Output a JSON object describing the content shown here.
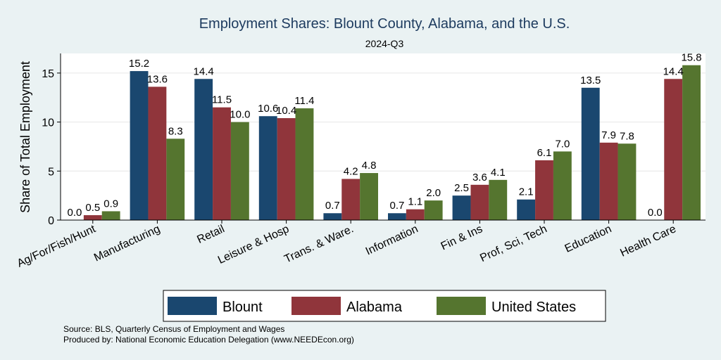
{
  "chart_data": {
    "type": "bar",
    "title": "Employment Shares: Blount County, Alabama, and the U.S.",
    "subtitle": "2024-Q3",
    "ylabel": "Share of Total Employment",
    "xlabel": "",
    "ylim": [
      0,
      17
    ],
    "yticks": [
      0,
      5,
      10,
      15
    ],
    "grid": true,
    "legend_position": "bottom",
    "categories": [
      "Ag/For/Fish/Hunt",
      "Manufacturing",
      "Retail",
      "Leisure & Hosp",
      "Trans. & Ware.",
      "Information",
      "Fin & Ins",
      "Prof, Sci, Tech",
      "Education",
      "Health Care"
    ],
    "series": [
      {
        "name": "Blount",
        "color": "#1a476f",
        "values": [
          0.0,
          15.2,
          14.4,
          10.6,
          0.7,
          0.7,
          2.5,
          2.1,
          13.5,
          0.0
        ],
        "labels": [
          "0.0",
          "15.2",
          "14.4",
          "10.6",
          "0.7",
          "0.7",
          "2.5",
          "2.1",
          "13.5",
          "0.0"
        ]
      },
      {
        "name": "Alabama",
        "color": "#90353b",
        "values": [
          0.5,
          13.6,
          11.5,
          10.4,
          4.2,
          1.1,
          3.6,
          6.1,
          7.9,
          14.4
        ],
        "labels": [
          "0.5",
          "13.6",
          "11.5",
          "10.4",
          "4.2",
          "1.1",
          "3.6",
          "6.1",
          "7.9",
          "14.4"
        ]
      },
      {
        "name": "United States",
        "color": "#55752f",
        "values": [
          0.9,
          8.3,
          10.0,
          11.4,
          4.8,
          2.0,
          4.1,
          7.0,
          7.8,
          15.8
        ],
        "labels": [
          "0.9",
          "8.3",
          "10.0",
          "11.4",
          "4.8",
          "2.0",
          "4.1",
          "7.0",
          "7.8",
          "15.8"
        ]
      }
    ],
    "notes": [
      "Source: BLS, Quarterly Census of Employment and Wages",
      "Produced by: National Economic Education Delegation (www.NEEDEcon.org)"
    ]
  }
}
